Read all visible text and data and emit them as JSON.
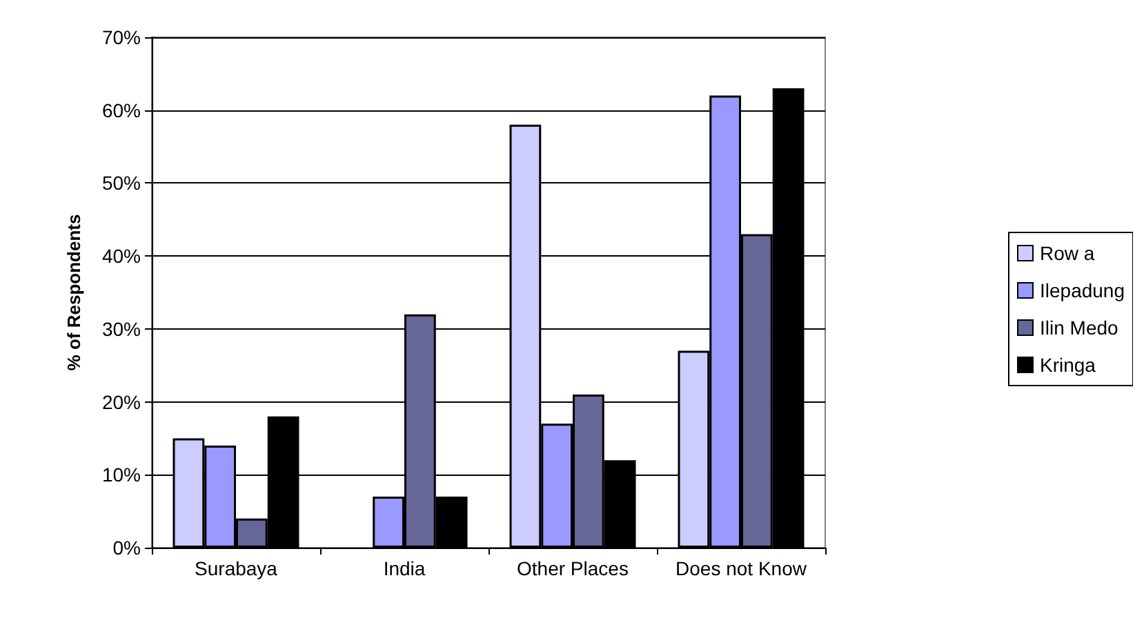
{
  "chart_data": {
    "type": "bar",
    "ylabel": "% of Respondents",
    "categories": [
      "Surabaya",
      "India",
      "Other Places",
      "Does not Know"
    ],
    "series": [
      {
        "name": "Row a",
        "color": "#ccccff",
        "values": [
          15,
          null,
          58,
          27
        ]
      },
      {
        "name": "Ilepadung",
        "color": "#9999ff",
        "values": [
          14,
          7,
          17,
          62
        ]
      },
      {
        "name": "Ilin Medo",
        "color": "#666699",
        "values": [
          4,
          32,
          21,
          43
        ]
      },
      {
        "name": "Kringa",
        "color": "#000000",
        "values": [
          18,
          7,
          12,
          63
        ]
      }
    ],
    "ylim": [
      0,
      70
    ],
    "yticks": [
      {
        "value": 0,
        "label": "0%"
      },
      {
        "value": 10,
        "label": "10%"
      },
      {
        "value": 20,
        "label": "20%"
      },
      {
        "value": 30,
        "label": "30%"
      },
      {
        "value": 40,
        "label": "40%"
      },
      {
        "value": 50,
        "label": "50%"
      },
      {
        "value": 60,
        "label": "60%"
      },
      {
        "value": 70,
        "label": "70%"
      }
    ],
    "grid": "y",
    "legend": "right"
  }
}
